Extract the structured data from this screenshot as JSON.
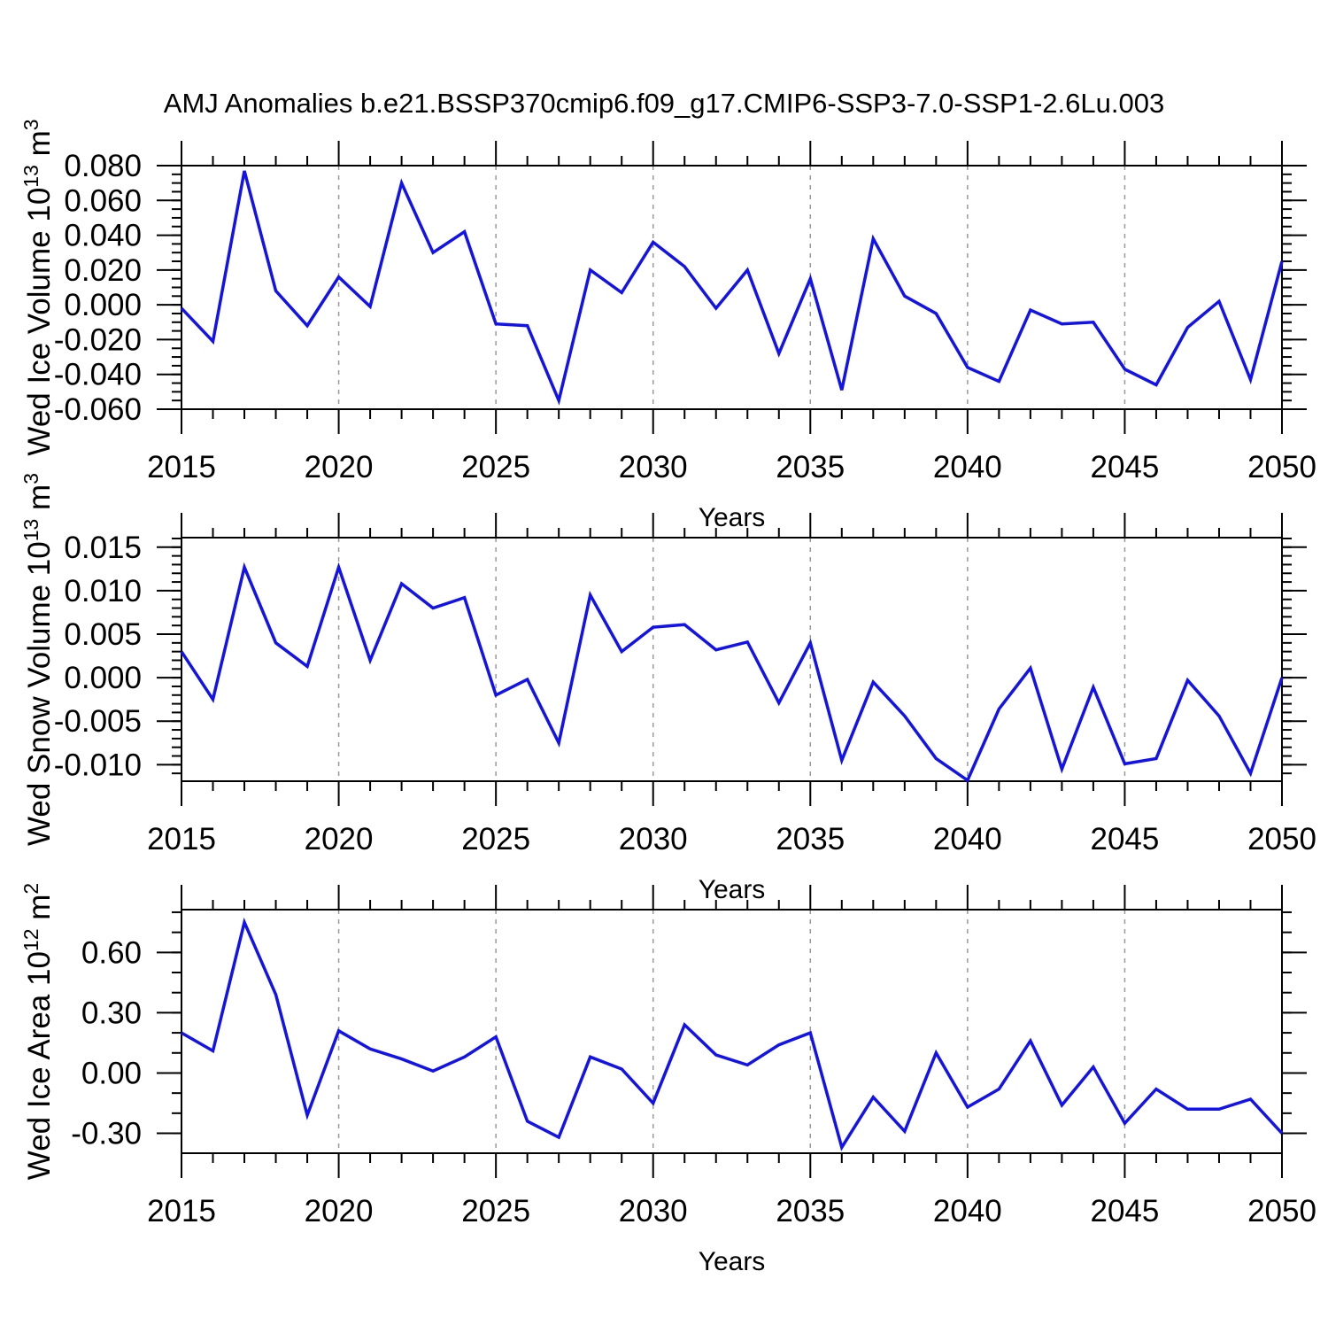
{
  "title": "AMJ Anomalies b.e21.BSSP370cmip6.f09_g17.CMIP6-SSP3-7.0-SSP1-2.6Lu.003",
  "xlabel": "Years",
  "line_color": "#1212ee",
  "grid_color": "#999999",
  "frame_color": "#000000",
  "x_axis": {
    "start_year": 2015,
    "end_year": 2050,
    "major_step": 5,
    "minor_step": 1,
    "tick_labels": [
      "2015",
      "2020",
      "2025",
      "2030",
      "2035",
      "2040",
      "2045",
      "2050"
    ],
    "grid_years": [
      2020,
      2025,
      2030,
      2035,
      2040,
      2045
    ]
  },
  "chart_data": [
    {
      "type": "line",
      "id": "wed-ice-volume",
      "ylabel_text": "Wed Ice Volume 10^13 m^3",
      "ylabel_segments": [
        {
          "text": "Wed Ice Volume 10",
          "sup": false
        },
        {
          "text": "13",
          "sup": true
        },
        {
          "text": " m",
          "sup": false
        },
        {
          "text": "3",
          "sup": true
        }
      ],
      "xlabel": "Years",
      "ylim": [
        -0.06,
        0.08
      ],
      "ytick_labels": [
        "0.080",
        "0.060",
        "0.040",
        "0.020",
        "0.000",
        "-0.020",
        "-0.040",
        "-0.060"
      ],
      "y_minor_step": 0.005,
      "grid": "x-dashed",
      "years": [
        2015,
        2016,
        2017,
        2018,
        2019,
        2020,
        2021,
        2022,
        2023,
        2024,
        2025,
        2026,
        2027,
        2028,
        2029,
        2030,
        2031,
        2032,
        2033,
        2034,
        2035,
        2036,
        2037,
        2038,
        2039,
        2040,
        2041,
        2042,
        2043,
        2044,
        2045,
        2046,
        2047,
        2048,
        2049,
        2050
      ],
      "values": [
        -0.002,
        -0.021,
        0.077,
        0.008,
        -0.012,
        0.016,
        -0.001,
        0.07,
        0.03,
        0.042,
        -0.011,
        -0.012,
        -0.055,
        0.02,
        0.007,
        0.036,
        0.022,
        -0.002,
        0.02,
        -0.028,
        0.015,
        -0.049,
        0.038,
        0.005,
        -0.005,
        -0.036,
        -0.044,
        -0.003,
        -0.011,
        -0.01,
        -0.037,
        -0.046,
        -0.013,
        0.002,
        -0.043,
        0.025
      ]
    },
    {
      "type": "line",
      "id": "wed-snow-volume",
      "ylabel_text": "Wed Snow Volume 10^13 m^3",
      "ylabel_segments": [
        {
          "text": "Wed Snow Volume 10",
          "sup": false
        },
        {
          "text": "13",
          "sup": true
        },
        {
          "text": " m",
          "sup": false
        },
        {
          "text": "3",
          "sup": true
        }
      ],
      "xlabel": "Years",
      "ylim": [
        -0.0119,
        0.0161
      ],
      "ytick_labels": [
        "0.015",
        "0.010",
        "0.005",
        "0.000",
        "-0.005",
        "-0.010"
      ],
      "y_minor_step": 0.001,
      "grid": "x-dashed",
      "years": [
        2015,
        2016,
        2017,
        2018,
        2019,
        2020,
        2021,
        2022,
        2023,
        2024,
        2025,
        2026,
        2027,
        2028,
        2029,
        2030,
        2031,
        2032,
        2033,
        2034,
        2035,
        2036,
        2037,
        2038,
        2039,
        2040,
        2041,
        2042,
        2043,
        2044,
        2045,
        2046,
        2047,
        2048,
        2049,
        2050
      ],
      "values": [
        0.003,
        -0.0025,
        0.0127,
        0.004,
        0.0013,
        0.0127,
        0.002,
        0.0108,
        0.008,
        0.0092,
        -0.002,
        -0.0002,
        -0.0075,
        0.0095,
        0.003,
        0.0058,
        0.0061,
        0.0032,
        0.0041,
        -0.0029,
        0.004,
        -0.0095,
        -0.0005,
        -0.0044,
        -0.0093,
        -0.0118,
        -0.0036,
        0.0011,
        -0.0105,
        -0.0011,
        -0.0099,
        -0.0093,
        -0.0003,
        -0.0044,
        -0.011,
        0.0
      ]
    },
    {
      "type": "line",
      "id": "wed-ice-area",
      "ylabel_text": "Wed Ice Area 10^12 m^2",
      "ylabel_segments": [
        {
          "text": "Wed Ice Area 10",
          "sup": false
        },
        {
          "text": "12",
          "sup": true
        },
        {
          "text": " m",
          "sup": false
        },
        {
          "text": "2",
          "sup": true
        }
      ],
      "xlabel": "Years",
      "ylim": [
        -0.399,
        0.813
      ],
      "ytick_labels": [
        "0.60",
        "0.30",
        "0.00",
        "-0.30"
      ],
      "y_minor_step": 0.1,
      "grid": "x-dashed",
      "years": [
        2015,
        2016,
        2017,
        2018,
        2019,
        2020,
        2021,
        2022,
        2023,
        2024,
        2025,
        2026,
        2027,
        2028,
        2029,
        2030,
        2031,
        2032,
        2033,
        2034,
        2035,
        2036,
        2037,
        2038,
        2039,
        2040,
        2041,
        2042,
        2043,
        2044,
        2045,
        2046,
        2047,
        2048,
        2049,
        2050
      ],
      "values": [
        0.2,
        0.11,
        0.75,
        0.39,
        -0.21,
        0.21,
        0.12,
        0.07,
        0.01,
        0.08,
        0.18,
        -0.24,
        -0.32,
        0.08,
        0.02,
        -0.15,
        0.24,
        0.09,
        0.04,
        0.14,
        0.2,
        -0.37,
        -0.12,
        -0.29,
        0.1,
        -0.17,
        -0.08,
        0.16,
        -0.16,
        0.03,
        -0.25,
        -0.08,
        -0.18,
        -0.18,
        -0.13,
        -0.3
      ]
    }
  ]
}
